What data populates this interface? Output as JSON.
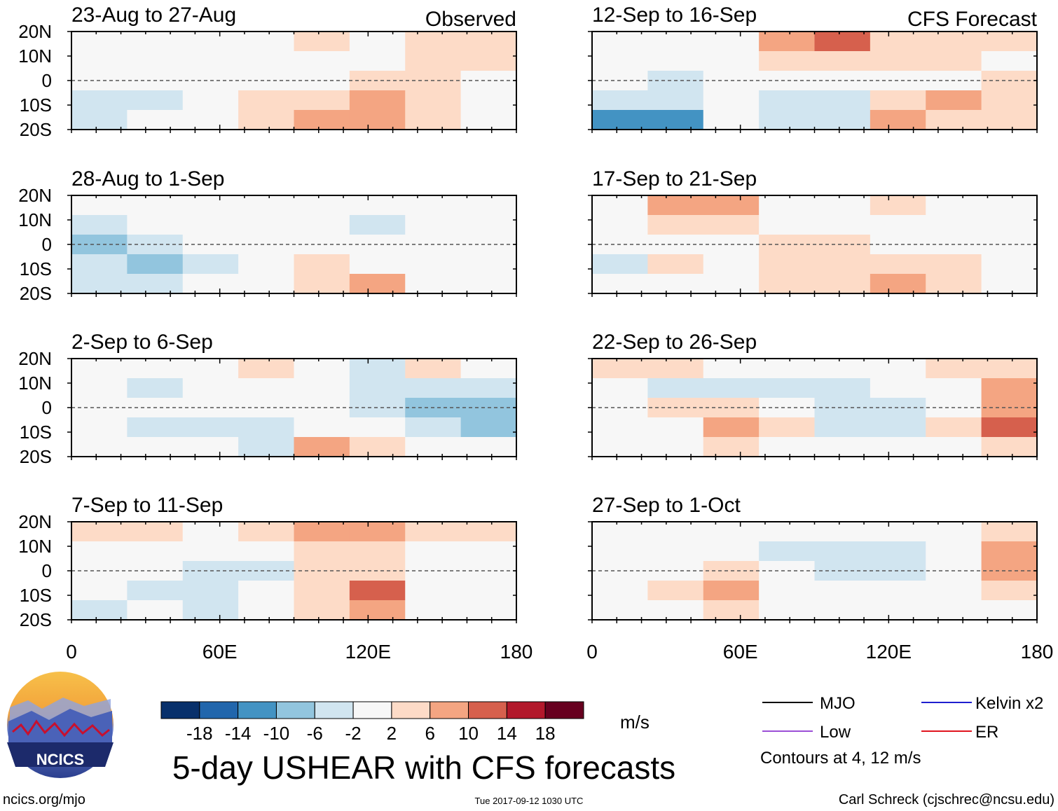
{
  "chart_data": {
    "type": "heatmap",
    "title": "5-day USHEAR with CFS forecasts",
    "variable": "USHEAR",
    "units": "m/s",
    "x_ticks": [
      "0",
      "60E",
      "120E",
      "180"
    ],
    "y_ticks": [
      "20N",
      "10N",
      "0",
      "10S",
      "20S"
    ],
    "xlim": [
      0,
      180
    ],
    "ylim": [
      -20,
      20
    ],
    "colorbar": {
      "labels": [
        "-18",
        "-14",
        "-10",
        "-6",
        "-2",
        "2",
        "6",
        "10",
        "14",
        "18"
      ],
      "colors": [
        "#08306b",
        "#2166ac",
        "#4393c3",
        "#92c5de",
        "#d1e5f0",
        "#f7f7f7",
        "#fddbc7",
        "#f4a582",
        "#d6604d",
        "#b2182b",
        "#67001f"
      ]
    },
    "columns": [
      {
        "label": "Observed",
        "periods": [
          "23-Aug to 27-Aug",
          "28-Aug to 1-Sep",
          "2-Sep to 6-Sep",
          "7-Sep to 11-Sep"
        ]
      },
      {
        "label": "CFS Forecast",
        "periods": [
          "12-Sep to 16-Sep",
          "17-Sep to 21-Sep",
          "22-Sep to 26-Sep",
          "27-Sep to 1-Oct"
        ]
      }
    ],
    "legend": {
      "entries": [
        {
          "name": "MJO",
          "color": "#000000"
        },
        {
          "name": "Kelvin x2",
          "color": "#1f1fcf"
        },
        {
          "name": "Low",
          "color": "#9b4fd6"
        },
        {
          "name": "ER",
          "color": "#e0141e"
        }
      ],
      "note": "Contours at 4, 12 m/s"
    },
    "panels": [
      {
        "cells": [
          [
            0,
            1,
            -1,
            1,
            2,
            1,
            3,
            4
          ],
          [
            -1,
            -2,
            0,
            1,
            -1,
            1,
            2,
            2
          ],
          [
            -2,
            -1,
            -1,
            0,
            1,
            2,
            2,
            1
          ],
          [
            -4,
            -3,
            1,
            2,
            5,
            6,
            3,
            1
          ],
          [
            -3,
            -1,
            0,
            3,
            7,
            9,
            4,
            0
          ]
        ]
      },
      {
        "cells": [
          [
            1,
            1,
            0,
            1,
            0,
            -1,
            1,
            0
          ],
          [
            -3,
            -1,
            0,
            -1,
            -2,
            -3,
            -1,
            0
          ],
          [
            -7,
            -5,
            -1,
            1,
            -1,
            -2,
            0,
            -1
          ],
          [
            -6,
            -8,
            -3,
            0,
            2,
            1,
            -1,
            0
          ],
          [
            -4,
            -5,
            -2,
            1,
            5,
            8,
            1,
            -1
          ]
        ]
      },
      {
        "cells": [
          [
            -1,
            0,
            0,
            2,
            -2,
            -4,
            3,
            1
          ],
          [
            -2,
            -3,
            0,
            1,
            0,
            -3,
            -6,
            -5
          ],
          [
            1,
            -1,
            -2,
            -1,
            -2,
            -3,
            -7,
            -8
          ],
          [
            -1,
            -5,
            -6,
            -5,
            1,
            -2,
            -6,
            -7
          ],
          [
            1,
            -2,
            -2,
            -3,
            6,
            2,
            -1,
            -1
          ]
        ]
      },
      {
        "cells": [
          [
            4,
            2,
            0,
            4,
            7,
            9,
            3,
            3
          ],
          [
            1,
            0,
            -2,
            1,
            3,
            2,
            -1,
            0
          ],
          [
            -1,
            -2,
            -3,
            -3,
            2,
            4,
            -1,
            -2
          ],
          [
            -2,
            -3,
            -4,
            -2,
            5,
            10,
            -1,
            -1
          ],
          [
            -4,
            -2,
            -3,
            -1,
            4,
            6,
            -1,
            0
          ]
        ]
      },
      {
        "cells": [
          [
            0,
            1,
            -1,
            7,
            11,
            3,
            3,
            5
          ],
          [
            -1,
            -2,
            -1,
            3,
            4,
            2,
            2,
            1
          ],
          [
            -2,
            -3,
            -1,
            1,
            1,
            -2,
            -1,
            4
          ],
          [
            -5,
            -6,
            -2,
            -5,
            -6,
            4,
            8,
            3
          ],
          [
            -13,
            -14,
            -2,
            -3,
            -4,
            6,
            4,
            3
          ]
        ]
      },
      {
        "cells": [
          [
            1,
            7,
            6,
            -1,
            -1,
            2,
            1,
            1
          ],
          [
            -1,
            4,
            2,
            -2,
            -1,
            1,
            -1,
            0
          ],
          [
            -2,
            1,
            -1,
            2,
            2,
            -1,
            1,
            -1
          ],
          [
            -3,
            2,
            1,
            2,
            3,
            2,
            4,
            1
          ],
          [
            -2,
            -1,
            1,
            3,
            2,
            7,
            3,
            0
          ]
        ]
      },
      {
        "cells": [
          [
            3,
            5,
            1,
            -1,
            0,
            1,
            2,
            3
          ],
          [
            1,
            -3,
            -5,
            -4,
            -5,
            -2,
            1,
            6
          ],
          [
            -1,
            2,
            3,
            -2,
            -3,
            -4,
            -1,
            7
          ],
          [
            -1,
            1,
            8,
            2,
            -6,
            -3,
            2,
            10
          ],
          [
            -2,
            -1,
            2,
            -1,
            0,
            -1,
            1,
            4
          ]
        ]
      },
      {
        "cells": [
          [
            0,
            -1,
            -1,
            -2,
            0,
            0,
            1,
            2
          ],
          [
            -1,
            -2,
            -1,
            -3,
            -6,
            -4,
            -1,
            6
          ],
          [
            -1,
            1,
            4,
            -1,
            -5,
            -3,
            -1,
            8
          ],
          [
            -2,
            3,
            7,
            1,
            -2,
            -1,
            1,
            3
          ],
          [
            -1,
            1,
            4,
            1,
            -1,
            0,
            1,
            1
          ]
        ]
      }
    ]
  },
  "logo": {
    "text": "NCICS"
  },
  "footer": {
    "site": "ncics.org/mjo",
    "timestamp": "Tue 2017-09-12 1030 UTC",
    "credit": "Carl Schreck (cjschrec@ncsu.edu)"
  }
}
